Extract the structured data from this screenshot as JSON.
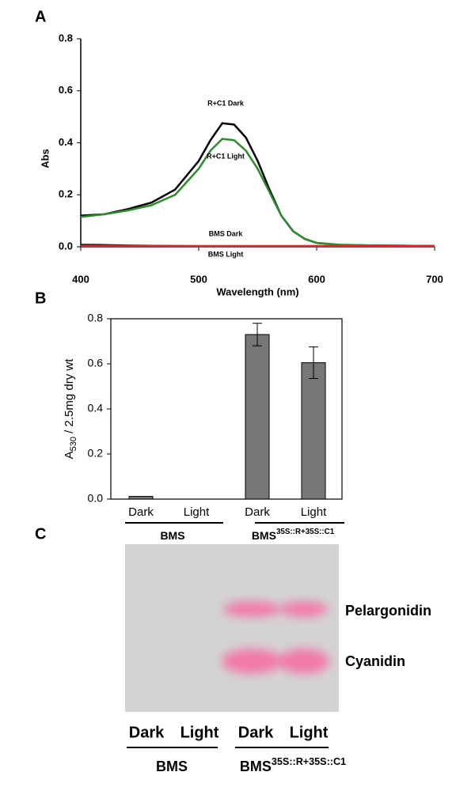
{
  "chart_data": [
    {
      "type": "line",
      "panel": "A",
      "xlabel": "Wavelength (nm)",
      "ylabel": "Abs",
      "x": [
        400,
        420,
        440,
        460,
        480,
        500,
        510,
        520,
        530,
        540,
        550,
        560,
        570,
        580,
        590,
        600,
        620,
        650,
        700
      ],
      "series": [
        {
          "name": "R+C1 Dark",
          "color": "#000000",
          "values": [
            0.12,
            0.125,
            0.145,
            0.17,
            0.22,
            0.33,
            0.41,
            0.475,
            0.47,
            0.42,
            0.33,
            0.22,
            0.12,
            0.06,
            0.03,
            0.015,
            0.007,
            0.005,
            0.003
          ]
        },
        {
          "name": "R+C1 Light",
          "color": "#2e8b2e",
          "values": [
            0.115,
            0.125,
            0.14,
            0.16,
            0.2,
            0.3,
            0.37,
            0.415,
            0.41,
            0.37,
            0.3,
            0.21,
            0.12,
            0.06,
            0.03,
            0.015,
            0.008,
            0.005,
            0.003
          ]
        },
        {
          "name": "BMS Dark",
          "color": "#222222",
          "values": [
            0.008,
            0.007,
            0.005,
            0.004,
            0.003,
            0.002,
            0.002,
            0.002,
            0.002,
            0.002,
            0.002,
            0.002,
            0.002,
            0.002,
            0.002,
            0.002,
            0.002,
            0.002,
            0.002
          ]
        },
        {
          "name": "BMS Light",
          "color": "#ee2222",
          "values": [
            0.003,
            0.003,
            0.003,
            0.003,
            0.003,
            0.003,
            0.003,
            0.003,
            0.003,
            0.003,
            0.003,
            0.003,
            0.003,
            0.003,
            0.003,
            0.003,
            0.003,
            0.003,
            0.003
          ]
        }
      ],
      "xlim": [
        400,
        700
      ],
      "xticks": [
        400,
        500,
        600,
        700
      ],
      "ylim": [
        0,
        0.8
      ],
      "yticks": [
        {
          "value": 0,
          "label": "0.0"
        },
        0.2,
        0.4,
        0.6,
        0.8
      ]
    },
    {
      "type": "bar",
      "panel": "B",
      "ylabel": [
        "A",
        "530",
        " / 2.5mg dry wt"
      ],
      "categories": [
        "Dark",
        "Light",
        "Dark",
        "Light"
      ],
      "values": [
        0.012,
        0,
        0.73,
        0.605
      ],
      "errors": [
        0,
        0,
        0.05,
        0.07
      ],
      "color": "#777777",
      "groups": [
        {
          "name": "BMS"
        },
        {
          "name": "BMS",
          "sup": "35S::R+35S::C1"
        }
      ],
      "ylim": [
        0,
        0.8
      ],
      "yticks": [
        {
          "value": 0,
          "label": "0.0"
        },
        0.2,
        0.4,
        0.6,
        0.8
      ]
    }
  ],
  "tlc": {
    "panel": "C",
    "bands": [
      "Pelargonidin",
      "Cyanidin"
    ],
    "lanes": [
      "Dark",
      "Light",
      "Dark",
      "Light"
    ],
    "groups": [
      {
        "name": "BMS"
      },
      {
        "name": "BMS",
        "sup": "35S::R+35S::C1"
      }
    ]
  }
}
